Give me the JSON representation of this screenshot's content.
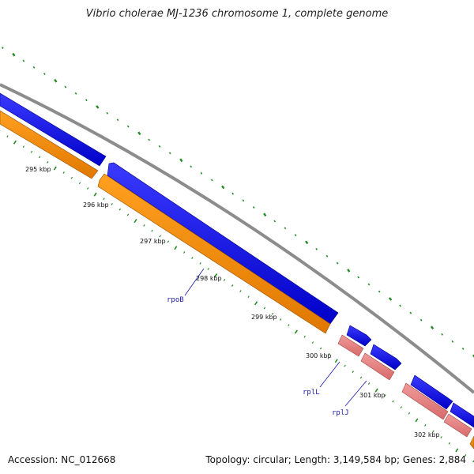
{
  "title": "Vibrio cholerae MJ-1236 chromosome 1, complete genome",
  "footer": {
    "accession": "Accession: NC_012668",
    "summary": "Topology: circular; Length: 3,149,584 bp; Genes: 2,884"
  },
  "colors": {
    "backbone": "#8c8c8c",
    "forward_cds": "#0000ee",
    "reverse_cds": "#ff8c00",
    "rrna_gene": "#e88080",
    "ticks": "#228b22",
    "gene_label": "#1a1aa8"
  },
  "ruler": [
    {
      "label": "295 kbp"
    },
    {
      "label": "296 kbp"
    },
    {
      "label": "297 kbp"
    },
    {
      "label": "298 kbp"
    },
    {
      "label": "299 kbp"
    },
    {
      "label": "300 kbp"
    },
    {
      "label": "301 kbp"
    },
    {
      "label": "302 kbp"
    }
  ],
  "gene_labels": [
    {
      "name": "rpoB"
    },
    {
      "name": "rplL"
    },
    {
      "name": "rplJ"
    }
  ]
}
